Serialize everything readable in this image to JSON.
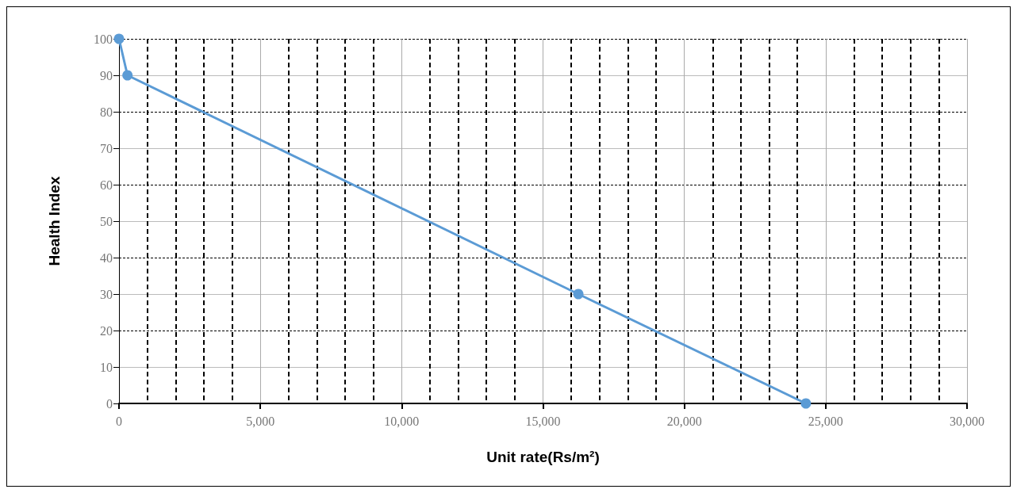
{
  "chart_data": {
    "type": "line",
    "xlabel": "Unit rate(Rs/m²)",
    "ylabel": "Health Index",
    "series": [
      {
        "color": "#5b9bd5",
        "x": [
          0,
          300,
          16250,
          24300
        ],
        "values": [
          100,
          90,
          30,
          0
        ]
      }
    ],
    "xlim": [
      0,
      30000
    ],
    "xticks": [
      {
        "value": 0,
        "label": "0"
      },
      {
        "value": 5000,
        "label": "5,000"
      },
      {
        "value": 10000,
        "label": "10,000"
      },
      {
        "value": 15000,
        "label": "15,000"
      },
      {
        "value": 20000,
        "label": "20,000"
      },
      {
        "value": 25000,
        "label": "25,000"
      },
      {
        "value": 30000,
        "label": "30,000"
      }
    ],
    "ylim": [
      0,
      100
    ],
    "yticks": [
      0,
      10,
      20,
      30,
      40,
      50,
      60,
      70,
      80,
      90,
      100
    ],
    "grid": true,
    "marker": "circle",
    "line_style": "solid"
  }
}
